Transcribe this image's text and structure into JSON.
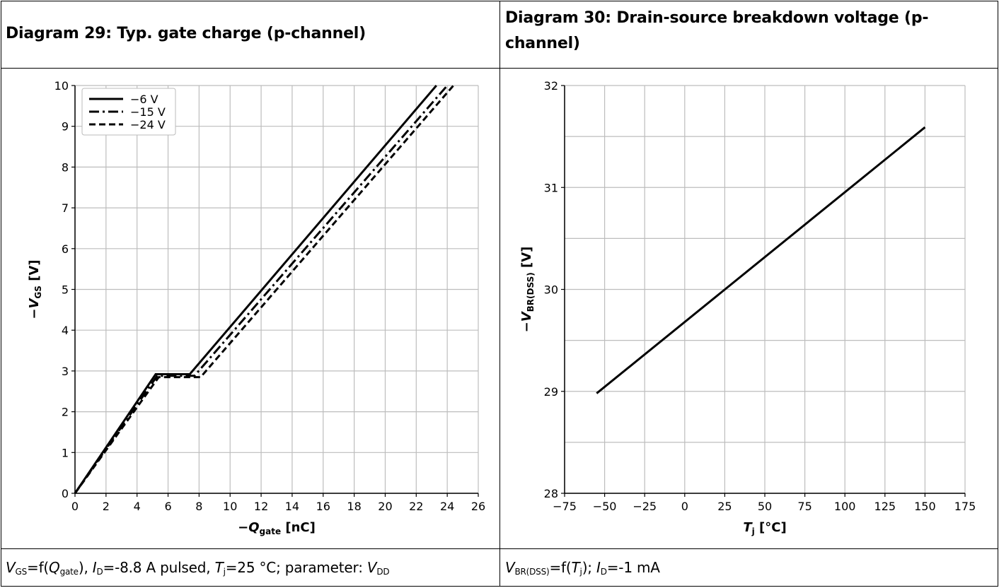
{
  "left": {
    "title": "Diagram 29: Typ. gate charge (p-channel)",
    "caption": {
      "p1_var": "V",
      "p1_sub": "GS",
      "p1_a": "=f(",
      "p1_var2": "Q",
      "p1_sub2": "gate",
      "p1_b": "), ",
      "p2_var": "I",
      "p2_sub": "D",
      "p2_a": "=-8.8 A pulsed, ",
      "p3_var": "T",
      "p3_sub": "j",
      "p3_a": "=25 °C; parameter: ",
      "p4_var": "V",
      "p4_sub": "DD"
    }
  },
  "right": {
    "title_line1": "Diagram 30: Drain-source breakdown voltage (p-",
    "title_line2": "channel)",
    "caption": {
      "p1_var": "V",
      "p1_sub": "BR(DSS)",
      "p1_a": "=f(",
      "p1_var2": "T",
      "p1_sub2": "j",
      "p1_b": "); ",
      "p2_var": "I",
      "p2_sub": "D",
      "p2_a": "=-1 mA"
    }
  },
  "chart_data": [
    {
      "type": "line",
      "xlabel_prefix": "−",
      "xlabel_var": "Q",
      "xlabel_sub": "gate",
      "xlabel_unit": " [nC]",
      "ylabel_prefix": "−",
      "ylabel_var": "V",
      "ylabel_sub": "GS",
      "ylabel_unit": " [V]",
      "xlim": [
        0,
        26
      ],
      "ylim": [
        0,
        10
      ],
      "xticks": [
        0,
        2,
        4,
        6,
        8,
        10,
        12,
        14,
        16,
        18,
        20,
        22,
        24,
        26
      ],
      "yticks": [
        0,
        1,
        2,
        3,
        4,
        5,
        6,
        7,
        8,
        9,
        10
      ],
      "grid": true,
      "legend_position": "top-left",
      "series": [
        {
          "name": "−6 V",
          "style": "solid",
          "x": [
            0,
            5.2,
            7.4,
            23.3
          ],
          "y": [
            0,
            2.92,
            2.92,
            10
          ]
        },
        {
          "name": "−15 V",
          "style": "dashdot",
          "x": [
            0,
            5.3,
            7.7,
            24.0
          ],
          "y": [
            0,
            2.88,
            2.88,
            10
          ]
        },
        {
          "name": "−24 V",
          "style": "dashed",
          "x": [
            0,
            5.4,
            8.1,
            24.4
          ],
          "y": [
            0,
            2.85,
            2.85,
            10
          ]
        }
      ]
    },
    {
      "type": "line",
      "xlabel_var": "T",
      "xlabel_sub": "j",
      "xlabel_unit": " [°C]",
      "ylabel_prefix": "−",
      "ylabel_var": "V",
      "ylabel_sub": "BR(DSS)",
      "ylabel_unit": " [V]",
      "xlim": [
        -75,
        175
      ],
      "ylim": [
        28,
        32
      ],
      "xticks": [
        -75,
        -50,
        -25,
        0,
        25,
        50,
        75,
        100,
        125,
        150,
        175
      ],
      "xtick_labels": [
        "−75",
        "−50",
        "−25",
        "0",
        "25",
        "50",
        "75",
        "100",
        "125",
        "150",
        "175"
      ],
      "yticks": [
        28,
        29,
        30,
        31,
        32
      ],
      "yticks_minor": [
        28.5,
        29.5,
        30.5,
        31.5
      ],
      "grid": true,
      "series": [
        {
          "style": "solid",
          "x": [
            -55,
            150
          ],
          "y": [
            28.98,
            31.59
          ]
        }
      ]
    }
  ]
}
